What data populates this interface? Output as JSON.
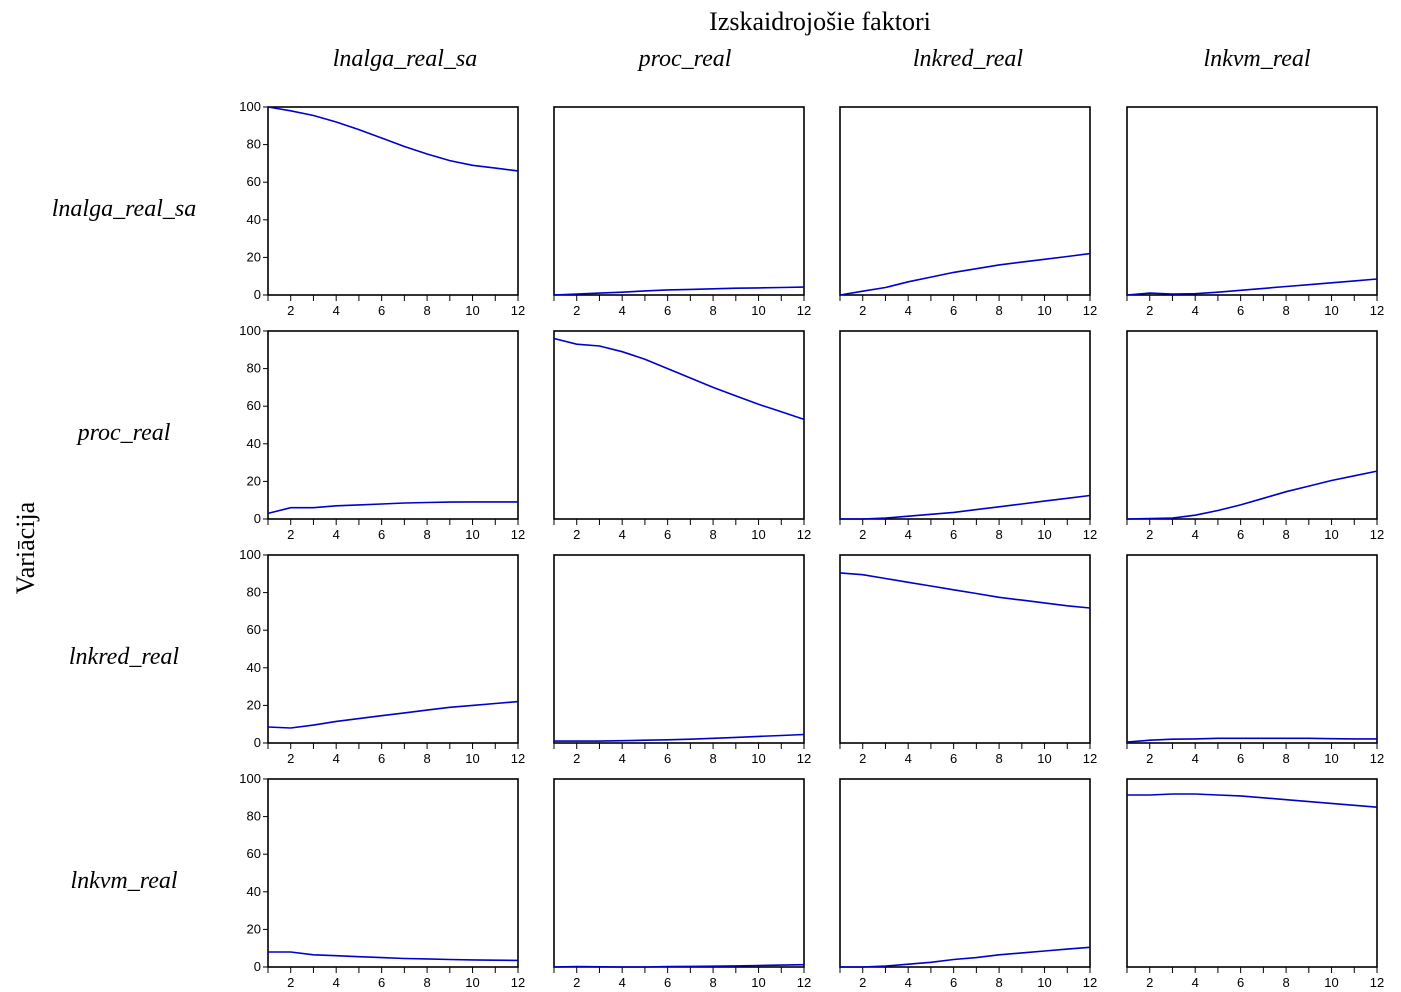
{
  "figure": {
    "title": "Izskaidrojošie faktori",
    "ylabel": "Variācija"
  },
  "chart_data": {
    "type": "line",
    "title": "Izskaidrojošie faktori",
    "ylabel": "Variācija",
    "columns": [
      "lnalga_real_sa",
      "proc_real",
      "lnkred_real",
      "lnkvm_real"
    ],
    "rows": [
      "lnalga_real_sa",
      "proc_real",
      "lnkred_real",
      "lnkvm_real"
    ],
    "x": [
      1,
      2,
      3,
      4,
      5,
      6,
      7,
      8,
      9,
      10,
      11,
      12
    ],
    "x_ticks": [
      "2",
      "4",
      "6",
      "8",
      "10",
      "12"
    ],
    "ylim": [
      0,
      100
    ],
    "y_ticks": [
      "0",
      "20",
      "40",
      "60",
      "80",
      "100"
    ],
    "line_color": "#0000cc",
    "panels": [
      [
        [
          100,
          98,
          95.5,
          92,
          88,
          83.5,
          79,
          75,
          71.5,
          69,
          67.5,
          66
        ],
        [
          0,
          0.5,
          1,
          1.5,
          2.2,
          2.7,
          3,
          3.3,
          3.6,
          3.8,
          4,
          4.2
        ],
        [
          0,
          2,
          4,
          7,
          9.5,
          12,
          14,
          16,
          17.5,
          19,
          20.5,
          22
        ],
        [
          0,
          1,
          0.5,
          0.7,
          1.5,
          2.5,
          3.5,
          4.5,
          5.5,
          6.5,
          7.5,
          8.5
        ]
      ],
      [
        [
          3,
          6,
          6,
          7,
          7.5,
          8,
          8.5,
          8.8,
          9,
          9.1,
          9.1,
          9.1
        ],
        [
          96,
          93,
          92,
          89,
          85,
          80,
          75,
          70,
          65.5,
          61,
          57,
          53
        ],
        [
          0,
          0,
          0.5,
          1.5,
          2.5,
          3.5,
          5,
          6.5,
          8,
          9.5,
          11,
          12.5
        ],
        [
          0,
          0.2,
          0.5,
          2,
          4.5,
          7.5,
          11,
          14.5,
          17.5,
          20.5,
          23,
          25.5
        ]
      ],
      [
        [
          8.5,
          8,
          9.5,
          11.5,
          13,
          14.5,
          16,
          17.5,
          19,
          20,
          21,
          22
        ],
        [
          1,
          1,
          1,
          1.2,
          1.5,
          1.7,
          2,
          2.5,
          3,
          3.5,
          4,
          4.5
        ],
        [
          90.5,
          89.5,
          87.5,
          85.5,
          83.5,
          81.5,
          79.5,
          77.5,
          76,
          74.5,
          73,
          71.8
        ],
        [
          0.5,
          1.5,
          2,
          2.2,
          2.5,
          2.5,
          2.5,
          2.5,
          2.5,
          2.3,
          2.2,
          2.2
        ]
      ],
      [
        [
          8,
          8,
          6.5,
          6,
          5.5,
          5,
          4.5,
          4.3,
          4,
          3.8,
          3.6,
          3.5
        ],
        [
          0,
          0.2,
          0.1,
          0,
          0,
          0.2,
          0.3,
          0.4,
          0.6,
          0.8,
          1,
          1.2
        ],
        [
          0,
          0,
          0.5,
          1.5,
          2.5,
          4,
          5,
          6.5,
          7.5,
          8.5,
          9.5,
          10.5
        ],
        [
          91.5,
          91.5,
          92,
          92,
          91.5,
          91,
          90,
          89,
          88,
          87,
          86,
          85
        ]
      ]
    ]
  }
}
